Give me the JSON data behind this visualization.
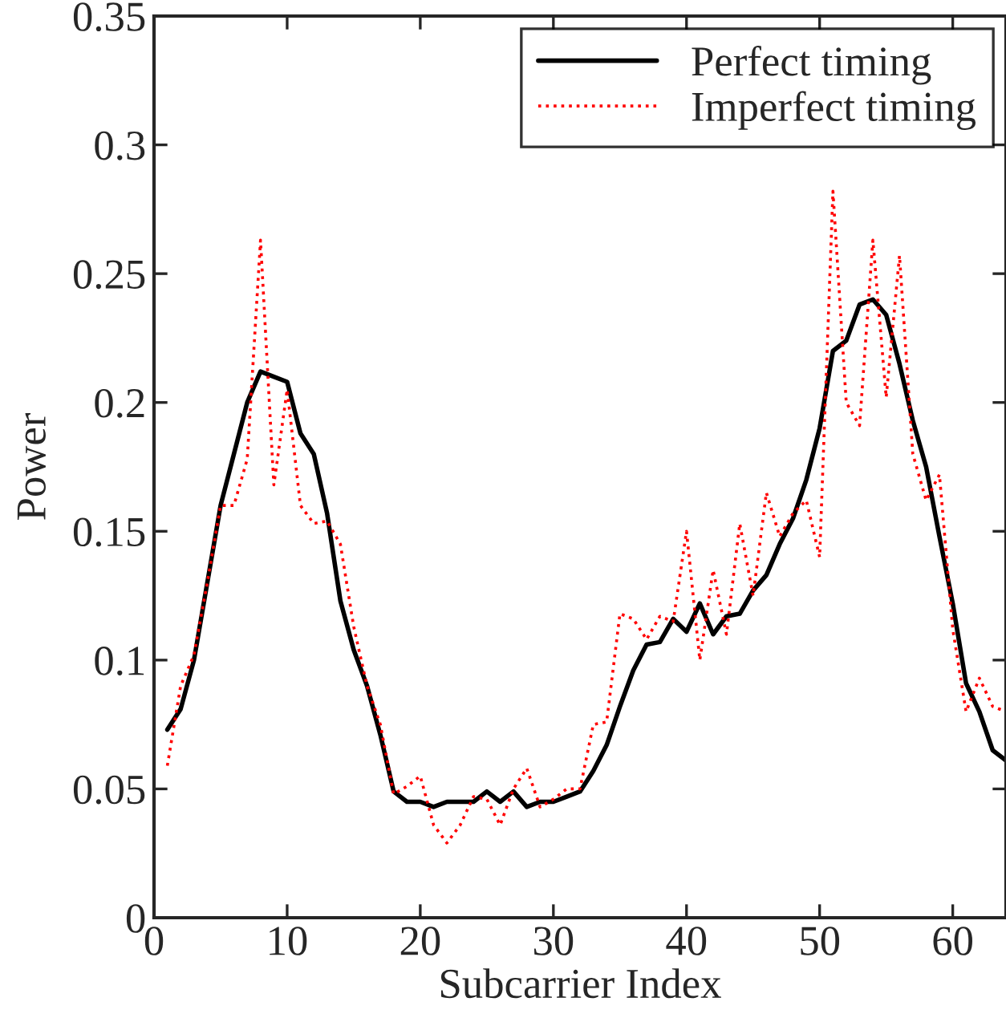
{
  "chart_data": {
    "type": "line",
    "xlabel": "Subcarrier Index",
    "ylabel": "Power",
    "x": [
      1,
      2,
      3,
      4,
      5,
      6,
      7,
      8,
      9,
      10,
      11,
      12,
      13,
      14,
      15,
      16,
      17,
      18,
      19,
      20,
      21,
      22,
      23,
      24,
      25,
      26,
      27,
      28,
      29,
      30,
      31,
      32,
      33,
      34,
      35,
      36,
      37,
      38,
      39,
      40,
      41,
      42,
      43,
      44,
      45,
      46,
      47,
      48,
      49,
      50,
      51,
      52,
      53,
      54,
      55,
      56,
      57,
      58,
      59,
      60,
      61,
      62,
      63,
      64
    ],
    "series": [
      {
        "name": "Perfect timing",
        "color": "#000000",
        "line_style": "solid",
        "values": [
          0.073,
          0.081,
          0.1,
          0.13,
          0.16,
          0.18,
          0.2,
          0.212,
          0.21,
          0.208,
          0.188,
          0.18,
          0.157,
          0.123,
          0.104,
          0.09,
          0.071,
          0.049,
          0.045,
          0.045,
          0.043,
          0.045,
          0.045,
          0.045,
          0.049,
          0.045,
          0.049,
          0.043,
          0.045,
          0.045,
          0.047,
          0.049,
          0.057,
          0.067,
          0.082,
          0.096,
          0.106,
          0.107,
          0.116,
          0.111,
          0.122,
          0.11,
          0.117,
          0.118,
          0.127,
          0.133,
          0.145,
          0.155,
          0.17,
          0.19,
          0.22,
          0.224,
          0.238,
          0.24,
          0.234,
          0.215,
          0.193,
          0.175,
          0.148,
          0.122,
          0.091,
          0.08,
          0.065,
          0.061
        ]
      },
      {
        "name": "Imperfect timing",
        "color": "#ff0000",
        "line_style": "dotted",
        "values": [
          0.059,
          0.09,
          0.102,
          0.13,
          0.16,
          0.16,
          0.178,
          0.263,
          0.168,
          0.205,
          0.16,
          0.153,
          0.154,
          0.145,
          0.113,
          0.09,
          0.075,
          0.048,
          0.051,
          0.055,
          0.036,
          0.029,
          0.036,
          0.047,
          0.046,
          0.036,
          0.05,
          0.058,
          0.043,
          0.046,
          0.05,
          0.05,
          0.075,
          0.076,
          0.118,
          0.116,
          0.108,
          0.117,
          0.115,
          0.15,
          0.1,
          0.135,
          0.11,
          0.153,
          0.125,
          0.165,
          0.148,
          0.157,
          0.162,
          0.14,
          0.282,
          0.2,
          0.191,
          0.263,
          0.202,
          0.257,
          0.18,
          0.162,
          0.172,
          0.112,
          0.08,
          0.093,
          0.082,
          0.08
        ]
      }
    ],
    "xlim": [
      0,
      64
    ],
    "xticks": [
      0,
      10,
      20,
      30,
      40,
      50,
      60
    ],
    "ylim": [
      0,
      0.35
    ],
    "yticks": [
      0,
      0.05,
      0.1,
      0.15,
      0.2,
      0.25,
      0.3,
      0.35
    ],
    "grid": false,
    "legend": "top right",
    "marker": "none"
  }
}
